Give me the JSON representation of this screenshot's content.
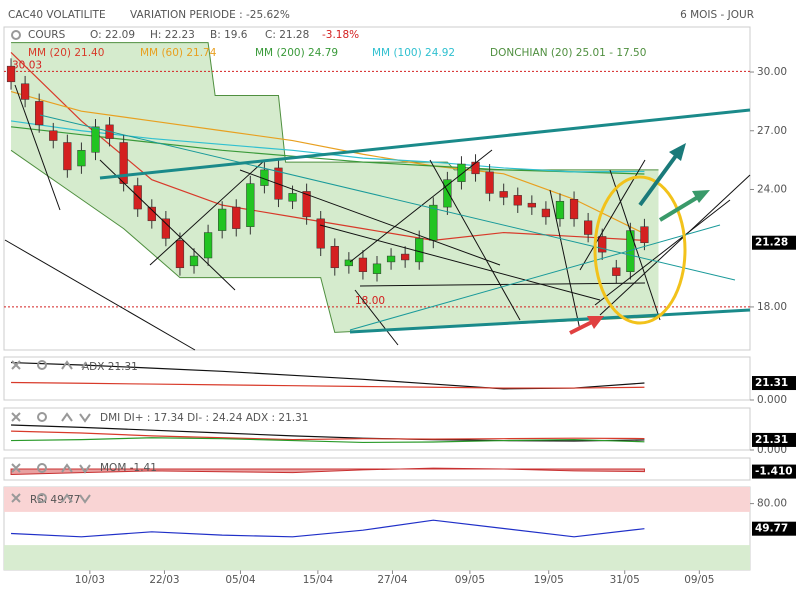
{
  "header": {
    "title": "CAC40 VOLATILITE",
    "variation": "VARIATION PERIODE : -25.62%",
    "period": "6 MOIS - JOUR",
    "cours": "COURS",
    "open": "O: 22.09",
    "high": "H: 22.23",
    "low": "B: 19.6",
    "close": "C: 21.28",
    "change": "-3.18%"
  },
  "chart_data": [
    {
      "type": "candlestick",
      "xlim": [
        -0.5,
        52.5
      ],
      "xticks": [
        {
          "value": 5.6,
          "label": "10/03"
        },
        {
          "value": 10.9,
          "label": "22/03"
        },
        {
          "value": 16.3,
          "label": "05/04"
        },
        {
          "value": 21.8,
          "label": "15/04"
        },
        {
          "value": 27.1,
          "label": "27/04"
        },
        {
          "value": 32.6,
          "label": "09/05"
        },
        {
          "value": 38.2,
          "label": "19/05"
        },
        {
          "value": 43.6,
          "label": "31/05"
        },
        {
          "value": 48.9,
          "label": "09/05"
        }
      ],
      "ylim": [
        15.8,
        32.3
      ],
      "yticks": [
        {
          "value": 18,
          "label": "18.00"
        },
        {
          "value": 24,
          "label": "24.00"
        },
        {
          "value": 27,
          "label": "27.00"
        },
        {
          "value": 30,
          "label": "30.00"
        }
      ],
      "open": [
        30.3,
        29.4,
        28.5,
        27.0,
        26.4,
        25.2,
        25.9,
        27.3,
        26.4,
        24.2,
        23.1,
        22.5,
        21.4,
        20.1,
        20.5,
        21.9,
        23.1,
        22.1,
        24.2,
        25.1,
        23.4,
        23.9,
        22.5,
        21.1,
        20.1,
        20.5,
        19.7,
        20.3,
        20.7,
        20.3,
        21.4,
        23.1,
        24.4,
        25.4,
        24.9,
        23.9,
        23.7,
        23.3,
        23.0,
        22.5,
        23.5,
        22.4,
        21.6,
        20.0,
        19.8,
        22.1
      ],
      "high": [
        30.7,
        29.8,
        28.9,
        27.4,
        26.8,
        26.4,
        27.6,
        27.7,
        26.8,
        24.6,
        23.5,
        22.9,
        21.8,
        21.0,
        22.2,
        23.4,
        23.5,
        24.7,
        25.4,
        25.5,
        24.2,
        24.3,
        22.9,
        21.5,
        20.8,
        20.9,
        20.6,
        21.0,
        21.1,
        21.9,
        23.6,
        24.9,
        25.7,
        25.8,
        25.3,
        24.3,
        24.1,
        23.7,
        23.4,
        23.8,
        23.9,
        22.8,
        22.0,
        20.4,
        22.3,
        22.5
      ],
      "low": [
        29.1,
        28.2,
        26.9,
        26.1,
        24.6,
        24.8,
        25.5,
        26.2,
        23.9,
        22.6,
        22.0,
        21.1,
        19.6,
        19.7,
        20.1,
        21.5,
        21.6,
        21.7,
        23.8,
        23.1,
        23.0,
        22.2,
        20.6,
        19.6,
        19.7,
        19.4,
        19.3,
        19.9,
        20.0,
        19.9,
        21.0,
        22.7,
        24.0,
        24.4,
        23.4,
        23.2,
        22.8,
        22.7,
        22.2,
        22.1,
        22.1,
        21.3,
        20.4,
        19.2,
        19.4,
        20.9
      ],
      "close": [
        29.5,
        28.6,
        27.3,
        26.5,
        25.0,
        26.0,
        27.2,
        26.6,
        24.3,
        23.0,
        22.4,
        21.5,
        20.0,
        20.6,
        21.8,
        23.0,
        22.0,
        24.3,
        25.0,
        23.5,
        23.8,
        22.6,
        21.0,
        20.0,
        20.4,
        19.8,
        20.2,
        20.6,
        20.4,
        21.5,
        23.2,
        24.5,
        25.3,
        24.8,
        23.8,
        23.6,
        23.2,
        23.1,
        22.6,
        23.4,
        22.5,
        21.7,
        20.8,
        19.6,
        21.9,
        21.28
      ],
      "up_color": "#22c422",
      "down_color": "#d42020",
      "band": {
        "name": "DONCHIAN (20) 25.01 - 17.50",
        "color": "#4f8f3f",
        "fill": "#d5ebcd",
        "upper": {
          "x": [
            0,
            14,
            14.5,
            19,
            19.5,
            31,
            31.5,
            46
          ],
          "values": [
            31.5,
            31.5,
            28.8,
            28.8,
            25.4,
            25.4,
            25.0,
            25.0
          ]
        },
        "lower": {
          "x": [
            0,
            4,
            8,
            12,
            22,
            23,
            46
          ],
          "values": [
            26,
            24,
            22,
            19.5,
            19.5,
            16.7,
            17.5
          ]
        }
      },
      "series": [
        {
          "name": "MM (20) 21.40",
          "color": "#d83a2a",
          "x": [
            0,
            5,
            10,
            15,
            20,
            25,
            30,
            35,
            40,
            45
          ],
          "values": [
            31,
            27.5,
            24.5,
            23.2,
            22.6,
            22.0,
            21.4,
            21.8,
            21.6,
            21.4
          ]
        },
        {
          "name": "MM (60) 21.74",
          "color": "#e8a020",
          "x": [
            0,
            5,
            10,
            15,
            20,
            25,
            30,
            35,
            40,
            45
          ],
          "values": [
            29,
            28,
            27.5,
            27,
            26.5,
            25.8,
            25.2,
            24.8,
            23.5,
            21.74
          ]
        },
        {
          "name": "MM (200) 24.79",
          "color": "#3a9a3a",
          "x": [
            0,
            5,
            10,
            15,
            20,
            25,
            30,
            35,
            40,
            45
          ],
          "values": [
            27.2,
            26.8,
            26.4,
            26.0,
            25.7,
            25.4,
            25.2,
            25.0,
            24.9,
            24.79
          ]
        },
        {
          "name": "MM (100) 24.92",
          "color": "#30c0d0",
          "x": [
            0,
            5,
            10,
            15,
            20,
            25,
            30,
            35,
            40,
            45
          ],
          "values": [
            27.5,
            27,
            26.6,
            26.3,
            26,
            25.6,
            25.4,
            25.1,
            24.9,
            24.92
          ]
        }
      ],
      "hlines": [
        {
          "value": 30.03,
          "label": "30.03"
        },
        {
          "value": 18,
          "label": "18.00"
        }
      ],
      "last": {
        "value": 21.28,
        "label": "21.28"
      }
    },
    {
      "type": "line",
      "title": "ADX 21.31",
      "ylim": [
        0,
        54
      ],
      "yticks": [
        {
          "value": 0,
          "label": "0.000"
        }
      ],
      "series": [
        {
          "color": "#111",
          "x": [
            0,
            5,
            10,
            15,
            20,
            25,
            30,
            35,
            40,
            45
          ],
          "values": [
            47,
            44,
            40,
            36,
            31,
            26,
            20,
            14,
            15,
            21.31
          ]
        },
        {
          "color": "#d83a2a",
          "x": [
            0,
            5,
            10,
            15,
            20,
            25,
            30,
            35,
            40,
            45
          ],
          "values": [
            22,
            21,
            20,
            19,
            18,
            17,
            16,
            15,
            15,
            16
          ]
        }
      ],
      "last": {
        "value": 21.31,
        "label": "21.31"
      }
    },
    {
      "type": "line",
      "title": "DMI DI+ : 17.34 DI- : 24.24 ADX : 21.31",
      "ylim": [
        0,
        89
      ],
      "yticks": [
        {
          "value": 0,
          "label": "0.000"
        }
      ],
      "series": [
        {
          "color": "#111",
          "x": [
            0,
            5,
            10,
            15,
            20,
            25,
            30,
            35,
            40,
            45
          ],
          "values": [
            53,
            48,
            42,
            36,
            30,
            25,
            22,
            20,
            19,
            21.31
          ]
        },
        {
          "color": "#d83a2a",
          "x": [
            0,
            5,
            10,
            15,
            20,
            25,
            30,
            35,
            40,
            45
          ],
          "values": [
            40,
            36,
            30,
            26,
            22,
            24,
            23,
            24,
            25,
            24.24
          ]
        },
        {
          "color": "#2a9a2a",
          "x": [
            0,
            5,
            10,
            15,
            20,
            25,
            30,
            35,
            40,
            45
          ],
          "values": [
            20,
            22,
            26,
            24,
            20,
            16,
            17,
            20,
            22,
            17.34
          ]
        }
      ],
      "last": {
        "value": 21.31,
        "label": "21.31"
      }
    },
    {
      "type": "area",
      "title": "MOM -1.41",
      "ylim": [
        -6,
        6
      ],
      "yticks": [],
      "series": [
        {
          "color": "#c83030",
          "fill": "#e8a0a0",
          "x": [
            0,
            5,
            10,
            15,
            20,
            25,
            30,
            35,
            40,
            45
          ],
          "values": [
            -3,
            -2,
            -1,
            -1.5,
            -2,
            -0.5,
            0.5,
            0,
            -1,
            -1.41
          ]
        }
      ],
      "last": {
        "value": -1.41,
        "label": "-1.410"
      }
    },
    {
      "type": "line",
      "title": "RSI 49.77",
      "ylim": [
        0,
        100
      ],
      "yticks": [
        {
          "value": 80,
          "label": "80.00"
        }
      ],
      "zones": [
        {
          "from": 70,
          "to": 100,
          "color": "#f9d4d4"
        },
        {
          "from": 0,
          "to": 30,
          "color": "#d8ecd0"
        }
      ],
      "series": [
        {
          "color": "#2030c8",
          "x": [
            0,
            5,
            10,
            15,
            20,
            25,
            30,
            35,
            40,
            45
          ],
          "values": [
            44,
            40,
            46,
            42,
            40,
            48,
            60,
            50,
            40,
            49.77
          ]
        }
      ],
      "last": {
        "value": 49.77,
        "label": "49.77"
      }
    }
  ]
}
